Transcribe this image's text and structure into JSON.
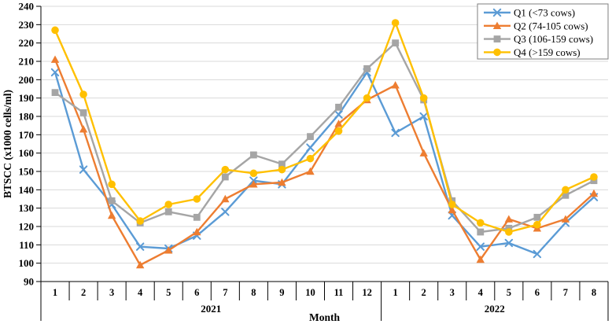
{
  "chart_data": {
    "type": "line",
    "title": "",
    "ylabel": "BTSCC (x1000 cells/ml)",
    "xlabel": "Month",
    "ylim": [
      90,
      240
    ],
    "ytick_step": 10,
    "yticks": [
      90,
      100,
      110,
      120,
      130,
      140,
      150,
      160,
      170,
      180,
      190,
      200,
      210,
      220,
      230,
      240
    ],
    "grid": true,
    "legend_position": "top-right",
    "x_groups": [
      {
        "year": "2021",
        "months": [
          "1",
          "2",
          "3",
          "4",
          "5",
          "6",
          "7",
          "8",
          "9",
          "10",
          "11",
          "12"
        ]
      },
      {
        "year": "2022",
        "months": [
          "1",
          "2",
          "3",
          "4",
          "5",
          "6",
          "7",
          "8"
        ]
      }
    ],
    "series": [
      {
        "name": "Q1 (<73 cows)",
        "color": "#5B9BD5",
        "marker": "x",
        "values": [
          204,
          151,
          132,
          109,
          108,
          115,
          128,
          145,
          143,
          163,
          181,
          204,
          171,
          180,
          126,
          109,
          111,
          105,
          122,
          136
        ]
      },
      {
        "name": "Q2 (74-105 cows)",
        "color": "#ED7D31",
        "marker": "triangle",
        "values": [
          211,
          173,
          126,
          99,
          107,
          117,
          135,
          143,
          144,
          150,
          176,
          189,
          197,
          160,
          129,
          102,
          124,
          119,
          124,
          138
        ]
      },
      {
        "name": "Q3 (106-159 cows)",
        "color": "#A5A5A5",
        "marker": "square",
        "values": [
          193,
          182,
          134,
          122,
          128,
          125,
          147,
          159,
          154,
          169,
          185,
          206,
          220,
          189,
          134,
          117,
          119,
          125,
          137,
          145
        ]
      },
      {
        "name": "Q4 (>159 cows)",
        "color": "#FFC000",
        "marker": "circle",
        "values": [
          227,
          192,
          143,
          123,
          132,
          135,
          151,
          149,
          151,
          157,
          172,
          190,
          231,
          190,
          132,
          122,
          117,
          121,
          140,
          147
        ]
      }
    ],
    "gridline_color": "#D9D9D9"
  }
}
